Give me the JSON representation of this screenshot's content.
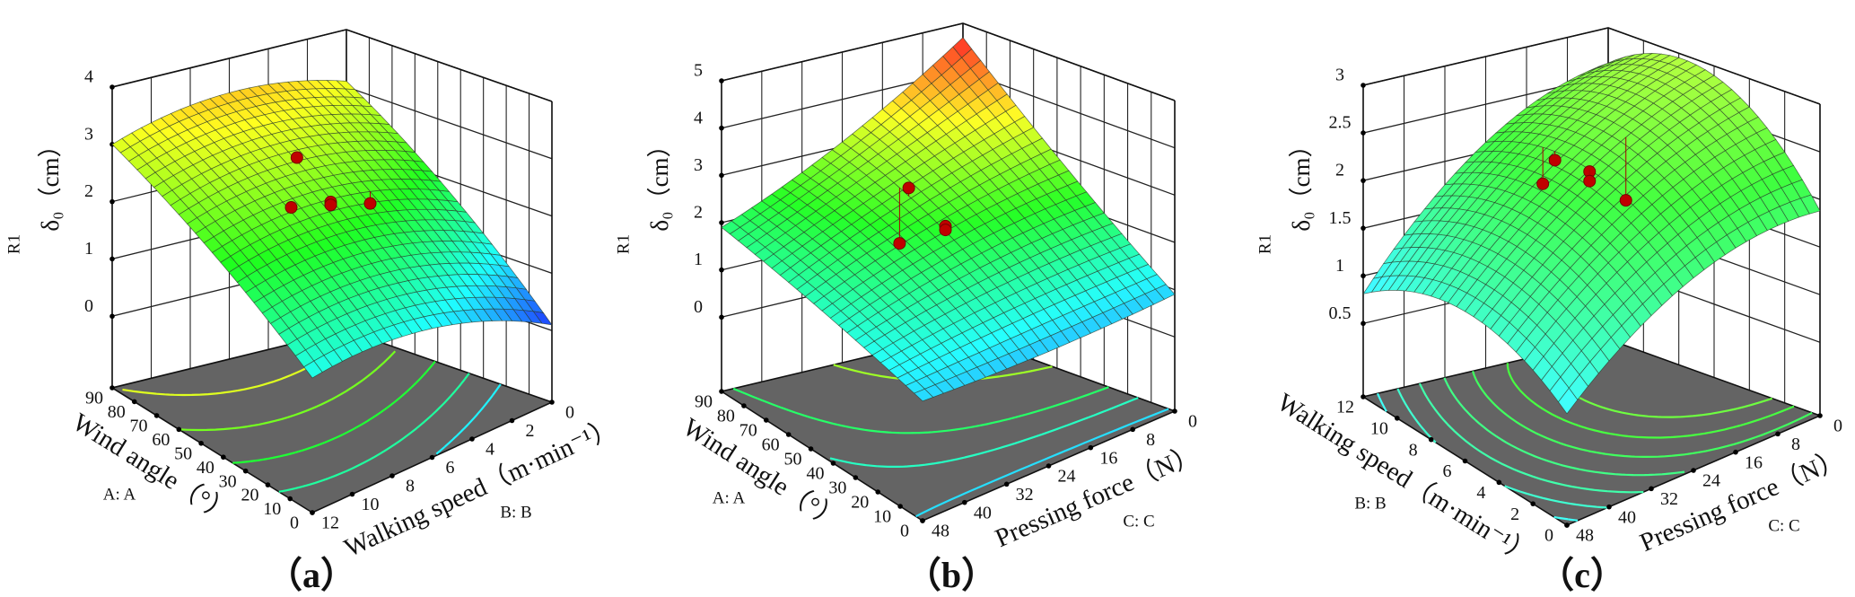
{
  "chart_data": [
    {
      "type": "surface3d",
      "panel_label": "（a）",
      "response": "R1",
      "zlabel": "δ₀（cm）",
      "axis1": {
        "title": "Wind angle（°）",
        "factor": "A: A",
        "min": 0,
        "max": 90,
        "ticks": [
          0,
          10,
          20,
          30,
          40,
          50,
          60,
          70,
          80,
          90
        ]
      },
      "axis2": {
        "title": "Walking speed（m·min⁻¹）",
        "factor": "B: B",
        "min": 0,
        "max": 12,
        "ticks": [
          0,
          2,
          4,
          6,
          8,
          10,
          12
        ]
      },
      "zaxis": {
        "ticks": [
          0,
          1,
          2,
          3,
          4
        ],
        "zlim": [
          -1.25,
          4
        ]
      },
      "color_range": [
        0,
        4.2
      ],
      "surface_grid": {
        "axis1_values": [
          0,
          45,
          90
        ],
        "axis2_values": [
          0,
          6,
          12
        ],
        "z": [
          [
            0.1,
            1.0,
            1.1
          ],
          [
            1.8,
            2.4,
            2.2
          ],
          [
            3.1,
            3.4,
            3.0
          ]
        ]
      },
      "contour_levels": [
        1.0,
        1.5,
        2.0,
        2.5,
        3.0
      ],
      "points": [
        [
          45,
          6,
          2.35
        ],
        [
          45,
          6,
          2.3
        ],
        [
          45,
          4,
          2.08
        ],
        [
          45,
          8,
          2.5
        ],
        [
          60,
          6,
          2.84
        ]
      ]
    },
    {
      "type": "surface3d",
      "panel_label": "（b）",
      "response": "R1",
      "zlabel": "δ₀（cm）",
      "axis1": {
        "title": "Wind angle（°）",
        "factor": "A: A",
        "min": 0,
        "max": 90,
        "ticks": [
          0,
          10,
          20,
          30,
          40,
          50,
          60,
          70,
          80,
          90
        ]
      },
      "axis2": {
        "title": "Pressing force（N）",
        "factor": "C: C",
        "min": 0,
        "max": 48,
        "ticks": [
          0,
          8,
          16,
          24,
          32,
          40,
          48
        ]
      },
      "zaxis": {
        "ticks": [
          0,
          1,
          2,
          3,
          4,
          5
        ],
        "zlim": [
          -1.57,
          5
        ]
      },
      "color_range": [
        0,
        4.7
      ],
      "surface_grid": {
        "axis1_values": [
          0,
          45,
          90
        ],
        "axis2_values": [
          0,
          24,
          48
        ],
        "z": [
          [
            0.9,
            0.85,
            0.96
          ],
          [
            2.7,
            2.3,
            1.5
          ],
          [
            4.7,
            3.1,
            1.9
          ]
        ]
      },
      "contour_levels": [
        1.0,
        1.5,
        2.0,
        3.0
      ],
      "points": [
        [
          45,
          24,
          2.41
        ],
        [
          45,
          24,
          2.33
        ],
        [
          61,
          24,
          2.83
        ],
        [
          65,
          24,
          1.56
        ]
      ]
    },
    {
      "type": "surface3d",
      "panel_label": "（c）",
      "response": "R1",
      "zlabel": "δ₀（cm）",
      "axis1": {
        "title": "Walking speed（m·min⁻¹）",
        "factor": "B: B",
        "min": 0,
        "max": 12,
        "ticks": [
          0,
          2,
          4,
          6,
          8,
          10,
          12
        ]
      },
      "axis2": {
        "title": "Pressing force（N）",
        "factor": "C: C",
        "min": 0,
        "max": 48,
        "ticks": [
          0,
          8,
          16,
          24,
          32,
          40,
          48
        ]
      },
      "zaxis": {
        "ticks": [
          0.5,
          1,
          1.5,
          2,
          2.5,
          3
        ],
        "zlim": [
          -0.27,
          3
        ]
      },
      "color_range": [
        -0.3,
        4.7
      ],
      "surface_grid": {
        "axis1_values": [
          0,
          6,
          12
        ],
        "axis2_values": [
          0,
          24,
          48
        ],
        "z": [
          [
            1.88,
            1.75,
            0.9
          ],
          [
            2.9,
            2.35,
            1.3
          ],
          [
            2.63,
            2.1,
            0.81
          ]
        ]
      },
      "contour_levels": [
        1.0,
        1.25,
        1.5,
        1.75,
        2.0,
        2.25,
        2.5
      ],
      "points": [
        [
          6,
          24,
          2.33
        ],
        [
          6,
          24,
          2.23
        ],
        [
          8,
          24,
          2.27
        ],
        [
          8.7,
          24,
          1.96
        ],
        [
          6,
          17,
          1.9
        ]
      ]
    }
  ]
}
